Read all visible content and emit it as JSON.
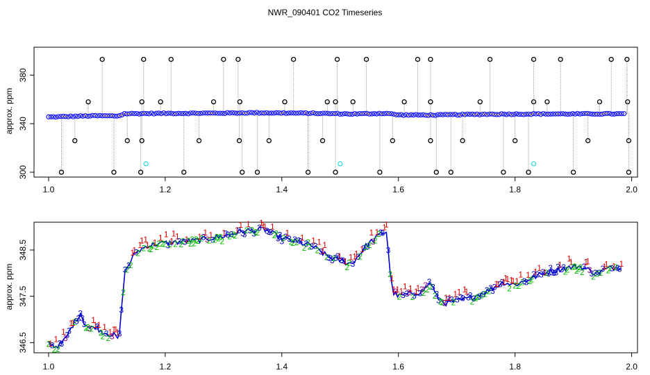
{
  "chart_data": [
    {
      "panel": "top",
      "type": "scatter",
      "title": "NWR_090401  CO2 Timeseries",
      "xlabel": "",
      "ylabel": "approx. ppm",
      "xlim": [
        0.975,
        2.01
      ],
      "ylim": [
        296,
        403
      ],
      "x_ticks": [
        1.0,
        1.2,
        1.4,
        1.6,
        1.8,
        2.0
      ],
      "x_tick_labels": [
        "1.0",
        "1.2",
        "1.4",
        "1.6",
        "1.8",
        "2.0"
      ],
      "y_ticks": [
        300,
        340,
        380
      ],
      "y_tick_labels": [
        "300",
        "340",
        "380"
      ],
      "baseline": [
        [
          1.0,
          345.5
        ],
        [
          1.04,
          346.0
        ],
        [
          1.08,
          346.5
        ],
        [
          1.12,
          346.3
        ],
        [
          1.13,
          348.2
        ],
        [
          1.2,
          348.5
        ],
        [
          1.3,
          348.7
        ],
        [
          1.35,
          349.0
        ],
        [
          1.45,
          348.6
        ],
        [
          1.52,
          348.0
        ],
        [
          1.58,
          348.5
        ],
        [
          1.6,
          347.2
        ],
        [
          1.66,
          347.1
        ],
        [
          1.75,
          347.8
        ],
        [
          1.85,
          348.0
        ],
        [
          1.95,
          348.1
        ],
        [
          1.99,
          348.1
        ]
      ],
      "outliers_high": [
        1.092,
        1.163,
        1.21,
        1.3,
        1.325,
        1.42,
        1.495,
        1.545,
        1.633,
        1.655,
        1.757,
        1.832,
        1.878,
        1.965,
        1.992
      ],
      "outliers_low": [
        1.022,
        1.112,
        1.158,
        1.232,
        1.332,
        1.358,
        1.445,
        1.492,
        1.568,
        1.665,
        1.69,
        1.78,
        1.823,
        1.9,
        1.995
      ],
      "outliers_mid_high": [
        1.068,
        1.16,
        1.192,
        1.283,
        1.328,
        1.405,
        1.478,
        1.492,
        1.522,
        1.61,
        1.655,
        1.74,
        1.832,
        1.855,
        1.945,
        1.993
      ],
      "outliers_mid_low": [
        1.045,
        1.135,
        1.16,
        1.258,
        1.327,
        1.378,
        1.47,
        1.59,
        1.655,
        1.71,
        1.8,
        1.925,
        1.995
      ],
      "cyan_points": [
        [
          1.167,
          307
        ],
        [
          1.5,
          307
        ],
        [
          1.832,
          307
        ]
      ],
      "colors": {
        "circle": "#000000",
        "baseline_fill": "#1a1aff",
        "baseline_accent": "#e8a000",
        "cyan": "#33dddd",
        "drop_line": "#999999"
      }
    },
    {
      "panel": "bottom",
      "type": "line",
      "xlabel": "",
      "ylabel": "approx. ppm",
      "xlim": [
        0.975,
        2.01
      ],
      "ylim": [
        346.28,
        349.1
      ],
      "x_ticks": [
        1.0,
        1.2,
        1.4,
        1.6,
        1.8,
        2.0
      ],
      "x_tick_labels": [
        "1.0",
        "1.2",
        "1.4",
        "1.6",
        "1.8",
        "2.0"
      ],
      "y_ticks": [
        346.5,
        347.5,
        348.5
      ],
      "y_tick_labels": [
        "346.5",
        "347.5",
        "348.5"
      ],
      "series_labels": [
        "1",
        "2",
        "3"
      ],
      "series_colors": {
        "1": "#dd0000",
        "2": "#00bb00",
        "3": "#0000cc",
        "line": "#0000cc",
        "special3": "#880088"
      },
      "curve": [
        [
          1.0,
          346.5
        ],
        [
          1.01,
          346.42
        ],
        [
          1.02,
          346.45
        ],
        [
          1.03,
          346.6
        ],
        [
          1.04,
          346.85
        ],
        [
          1.05,
          347.05
        ],
        [
          1.055,
          347.15
        ],
        [
          1.06,
          346.95
        ],
        [
          1.07,
          346.8
        ],
        [
          1.08,
          346.85
        ],
        [
          1.09,
          346.75
        ],
        [
          1.1,
          346.7
        ],
        [
          1.115,
          346.65
        ],
        [
          1.12,
          346.5
        ],
        [
          1.125,
          347.2
        ],
        [
          1.13,
          348.0
        ],
        [
          1.14,
          348.25
        ],
        [
          1.15,
          348.45
        ],
        [
          1.17,
          348.6
        ],
        [
          1.2,
          348.65
        ],
        [
          1.25,
          348.7
        ],
        [
          1.3,
          348.8
        ],
        [
          1.33,
          348.9
        ],
        [
          1.37,
          348.95
        ],
        [
          1.4,
          348.75
        ],
        [
          1.45,
          348.6
        ],
        [
          1.48,
          348.35
        ],
        [
          1.52,
          348.2
        ],
        [
          1.545,
          348.6
        ],
        [
          1.57,
          348.85
        ],
        [
          1.58,
          348.9
        ],
        [
          1.585,
          348.1
        ],
        [
          1.59,
          347.6
        ],
        [
          1.6,
          347.5
        ],
        [
          1.62,
          347.55
        ],
        [
          1.64,
          347.6
        ],
        [
          1.655,
          347.8
        ],
        [
          1.665,
          347.5
        ],
        [
          1.68,
          347.35
        ],
        [
          1.7,
          347.4
        ],
        [
          1.72,
          347.45
        ],
        [
          1.75,
          347.6
        ],
        [
          1.78,
          347.8
        ],
        [
          1.8,
          347.75
        ],
        [
          1.82,
          347.85
        ],
        [
          1.85,
          348.0
        ],
        [
          1.88,
          348.1
        ],
        [
          1.91,
          348.15
        ],
        [
          1.94,
          348.0
        ],
        [
          1.96,
          348.1
        ],
        [
          1.985,
          348.15
        ]
      ]
    }
  ]
}
